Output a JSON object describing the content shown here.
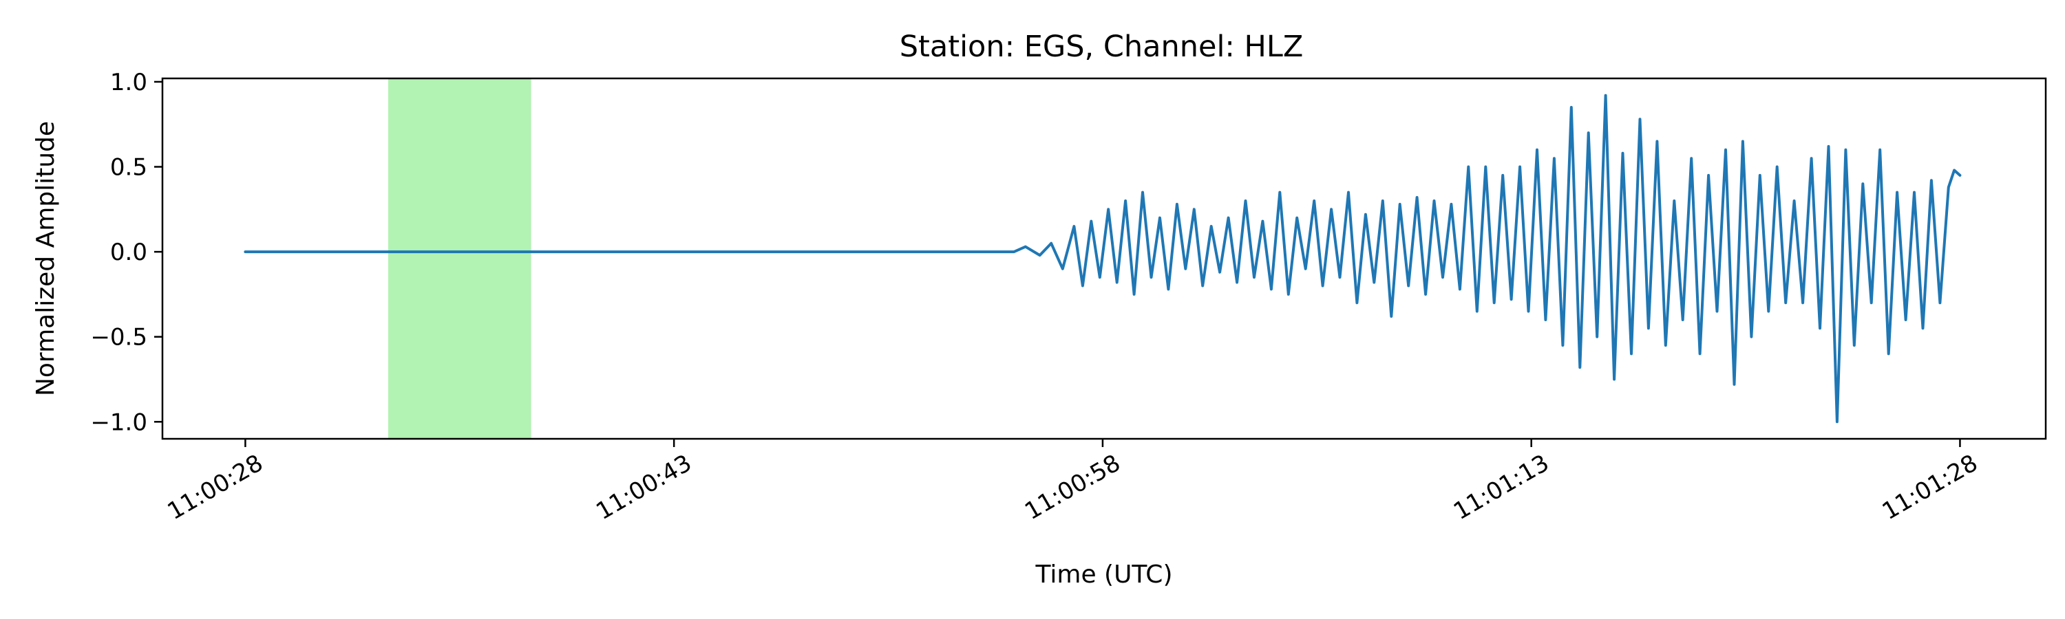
{
  "chart_data": {
    "type": "line",
    "title": "Station: EGS, Channel: HLZ",
    "xlabel": "Time (UTC)",
    "ylabel": "Normalized Amplitude",
    "x_unit": "seconds",
    "xlim": [
      -2.9,
      63.0
    ],
    "ylim": [
      -1.1,
      1.02
    ],
    "x_ticks": [
      {
        "value": 0,
        "label": "11:00:28"
      },
      {
        "value": 15,
        "label": "11:00:43"
      },
      {
        "value": 30,
        "label": "11:00:58"
      },
      {
        "value": 45,
        "label": "11:01:13"
      },
      {
        "value": 60,
        "label": "11:01:28"
      }
    ],
    "y_ticks": [
      {
        "value": 1.0,
        "label": "1.0"
      },
      {
        "value": 0.5,
        "label": "0.5"
      },
      {
        "value": 0.0,
        "label": "0.0"
      },
      {
        "value": -0.5,
        "label": "−0.5"
      },
      {
        "value": -1.0,
        "label": "−1.0"
      }
    ],
    "highlight_band": {
      "x_start": 5.0,
      "x_end": 10.0,
      "color": "#b2f2b2"
    },
    "grid": false,
    "series": [
      {
        "color": "#1f77b4",
        "x": [
          0,
          5,
          10,
          15,
          20,
          25,
          26.9,
          27.3,
          27.8,
          28.2,
          28.6,
          29.0,
          29.3,
          29.6,
          29.9,
          30.2,
          30.5,
          30.8,
          31.1,
          31.4,
          31.7,
          32.0,
          32.3,
          32.6,
          32.9,
          33.2,
          33.5,
          33.8,
          34.1,
          34.4,
          34.7,
          35.0,
          35.3,
          35.6,
          35.9,
          36.2,
          36.5,
          36.8,
          37.1,
          37.4,
          37.7,
          38.0,
          38.3,
          38.6,
          38.9,
          39.2,
          39.5,
          39.8,
          40.1,
          40.4,
          40.7,
          41.0,
          41.3,
          41.6,
          41.9,
          42.2,
          42.5,
          42.8,
          43.1,
          43.4,
          43.7,
          44.0,
          44.3,
          44.6,
          44.9,
          45.2,
          45.5,
          45.8,
          46.1,
          46.4,
          46.7,
          47.0,
          47.3,
          47.6,
          47.9,
          48.2,
          48.5,
          48.8,
          49.1,
          49.4,
          49.7,
          50.0,
          50.3,
          50.6,
          50.9,
          51.2,
          51.5,
          51.8,
          52.1,
          52.4,
          52.7,
          53.0,
          53.3,
          53.6,
          53.9,
          54.2,
          54.5,
          54.8,
          55.1,
          55.4,
          55.7,
          56.0,
          56.3,
          56.6,
          56.9,
          57.2,
          57.5,
          57.8,
          58.1,
          58.4,
          58.7,
          59.0,
          59.3,
          59.6,
          59.8,
          60.0
        ],
        "y": [
          0.0,
          0.0,
          0.0,
          0.0,
          0.0,
          0.0,
          0.0,
          0.03,
          -0.02,
          0.05,
          -0.1,
          0.15,
          -0.2,
          0.18,
          -0.15,
          0.25,
          -0.18,
          0.3,
          -0.25,
          0.35,
          -0.15,
          0.2,
          -0.22,
          0.28,
          -0.1,
          0.25,
          -0.2,
          0.15,
          -0.12,
          0.2,
          -0.18,
          0.3,
          -0.15,
          0.18,
          -0.22,
          0.35,
          -0.25,
          0.2,
          -0.1,
          0.3,
          -0.2,
          0.25,
          -0.15,
          0.35,
          -0.3,
          0.22,
          -0.18,
          0.3,
          -0.38,
          0.28,
          -0.2,
          0.32,
          -0.25,
          0.3,
          -0.15,
          0.28,
          -0.22,
          0.5,
          -0.35,
          0.5,
          -0.3,
          0.45,
          -0.28,
          0.5,
          -0.35,
          0.6,
          -0.4,
          0.55,
          -0.55,
          0.85,
          -0.68,
          0.7,
          -0.5,
          0.92,
          -0.75,
          0.58,
          -0.6,
          0.78,
          -0.45,
          0.65,
          -0.55,
          0.3,
          -0.4,
          0.55,
          -0.6,
          0.45,
          -0.35,
          0.6,
          -0.78,
          0.65,
          -0.5,
          0.45,
          -0.35,
          0.5,
          -0.3,
          0.3,
          -0.3,
          0.55,
          -0.45,
          0.62,
          -1.0,
          0.6,
          -0.55,
          0.4,
          -0.3,
          0.6,
          -0.6,
          0.35,
          -0.4,
          0.35,
          -0.45,
          0.42,
          -0.3,
          0.38,
          0.48,
          0.45
        ]
      }
    ]
  }
}
